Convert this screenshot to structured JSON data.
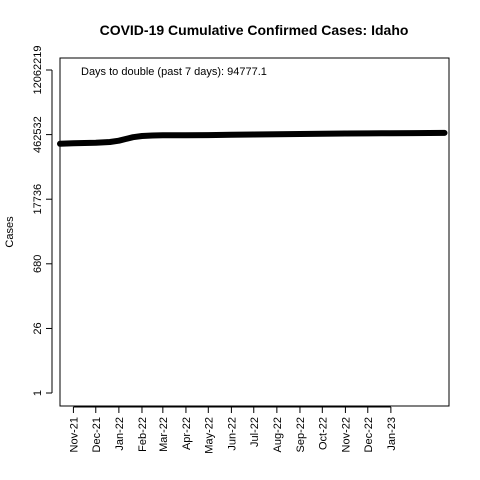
{
  "chart_data": {
    "type": "line",
    "title": "COVID-19 Cumulative Confirmed Cases: Idaho",
    "xlabel": "",
    "ylabel": "Cases",
    "y_scale": "log",
    "ylim": [
      1,
      12062219
    ],
    "yticks": [
      "1",
      "26",
      "680",
      "17736",
      "462532",
      "12062219"
    ],
    "ytick_values": [
      1,
      26,
      680,
      17736,
      462532,
      12062219
    ],
    "xlim": [
      "2021-10-14",
      "2023-03-20"
    ],
    "xticks": [
      "Nov-21",
      "Dec-21",
      "Jan-22",
      "Feb-22",
      "Mar-22",
      "Apr-22",
      "May-22",
      "Jun-22",
      "Jul-22",
      "Aug-22",
      "Sep-22",
      "Oct-22",
      "Nov-22",
      "Dec-22",
      "Jan-23"
    ],
    "xtick_dates": [
      "2021-11-01",
      "2021-12-01",
      "2022-01-01",
      "2022-02-01",
      "2022-03-01",
      "2022-04-01",
      "2022-05-01",
      "2022-06-01",
      "2022-07-01",
      "2022-08-01",
      "2022-09-01",
      "2022-10-01",
      "2022-11-01",
      "2022-12-01",
      "2023-01-01"
    ],
    "annotation": "Days to double (past 7 days): 94777.1",
    "line_color": "#000000",
    "grid": false,
    "series": [
      {
        "x": [
          "2021-10-14",
          "2021-11-01",
          "2021-12-01",
          "2021-12-20",
          "2022-01-01",
          "2022-01-10",
          "2022-01-20",
          "2022-02-01",
          "2022-02-15",
          "2022-03-01",
          "2022-04-01",
          "2022-05-01",
          "2022-06-01",
          "2022-07-01",
          "2022-08-01",
          "2022-09-01",
          "2022-10-01",
          "2022-11-01",
          "2022-12-01",
          "2023-01-01",
          "2023-02-01",
          "2023-03-14"
        ],
        "values": [
          290000,
          298000,
          306000,
          318000,
          340000,
          370000,
          405000,
          430000,
          442000,
          447000,
          449000,
          451000,
          457000,
          464000,
          470000,
          477000,
          483000,
          488000,
          492000,
          496000,
          500000,
          505000
        ]
      }
    ]
  }
}
